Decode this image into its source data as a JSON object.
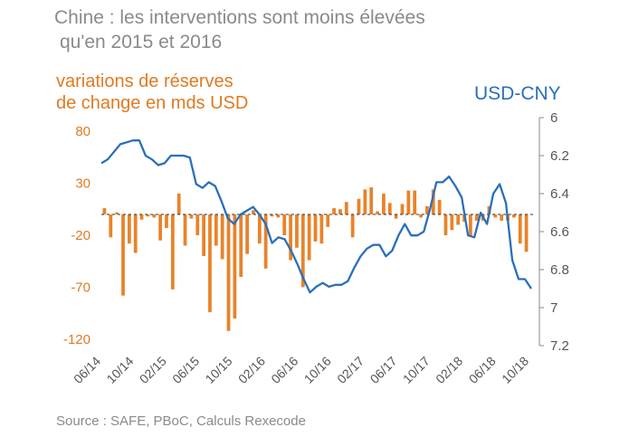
{
  "title": {
    "line1": "Chine : les interventions sont moins élevées",
    "line2": "qu'en 2015 et 2016"
  },
  "source": "Source : SAFE, PBoC, Calculs Rexecode",
  "colors": {
    "bars": "#e8832a",
    "line": "#2a6fba",
    "left_axis": "#e07a22",
    "right_axis": "#555555"
  },
  "chart_data": {
    "type": "bar+line",
    "left_axis": {
      "label_line1": "variations de réserves",
      "label_line2": "de change en mds USD",
      "ticks": [
        80,
        30,
        -20,
        -70,
        -120
      ],
      "range": [
        -120,
        100
      ]
    },
    "right_axis": {
      "label": "USD-CNY",
      "ticks": [
        "6",
        "6.2",
        "6.4",
        "6.6",
        "6.8",
        "7",
        "7.2"
      ],
      "inverted": true,
      "range": [
        6.0,
        7.2
      ]
    },
    "x_tick_labels": [
      "06/14",
      "10/14",
      "02/15",
      "06/15",
      "10/15",
      "02/16",
      "06/16",
      "10/16",
      "02/17",
      "06/17",
      "10/17",
      "02/18",
      "06/18",
      "10/18"
    ],
    "series": [
      {
        "name": "variations de réserves de change en mds USD",
        "axis": "left",
        "kind": "bar",
        "values": [
          6,
          -22,
          2,
          -78,
          -28,
          -37,
          -5,
          -2,
          -3,
          -25,
          -13,
          -72,
          20,
          -30,
          -4,
          -20,
          -40,
          -94,
          -30,
          -43,
          -112,
          -100,
          -60,
          -38,
          4,
          -28,
          -52,
          -2,
          -3,
          -20,
          -44,
          -32,
          -70,
          -44,
          -26,
          -28,
          -12,
          6,
          5,
          12,
          -22,
          15,
          24,
          26,
          3,
          20,
          11,
          -4,
          10,
          23,
          23,
          -3,
          8,
          24,
          14,
          -20,
          -15,
          -10,
          -7,
          -21,
          -6,
          -6,
          8,
          -3,
          -6,
          -6,
          -3,
          -28,
          -36
        ]
      },
      {
        "name": "USD-CNY",
        "axis": "right",
        "kind": "line",
        "values": [
          6.24,
          6.22,
          6.18,
          6.14,
          6.13,
          6.12,
          6.12,
          6.2,
          6.22,
          6.25,
          6.24,
          6.2,
          6.2,
          6.2,
          6.21,
          6.35,
          6.37,
          6.34,
          6.36,
          6.44,
          6.53,
          6.56,
          6.51,
          6.49,
          6.47,
          6.51,
          6.56,
          6.66,
          6.63,
          6.64,
          6.7,
          6.77,
          6.85,
          6.92,
          6.89,
          6.87,
          6.89,
          6.88,
          6.88,
          6.86,
          6.79,
          6.73,
          6.69,
          6.67,
          6.67,
          6.73,
          6.7,
          6.62,
          6.56,
          6.62,
          6.62,
          6.6,
          6.48,
          6.34,
          6.34,
          6.31,
          6.36,
          6.42,
          6.62,
          6.63,
          6.5,
          6.56,
          6.4,
          6.35,
          6.45,
          6.75,
          6.85,
          6.85,
          6.9
        ]
      }
    ]
  }
}
